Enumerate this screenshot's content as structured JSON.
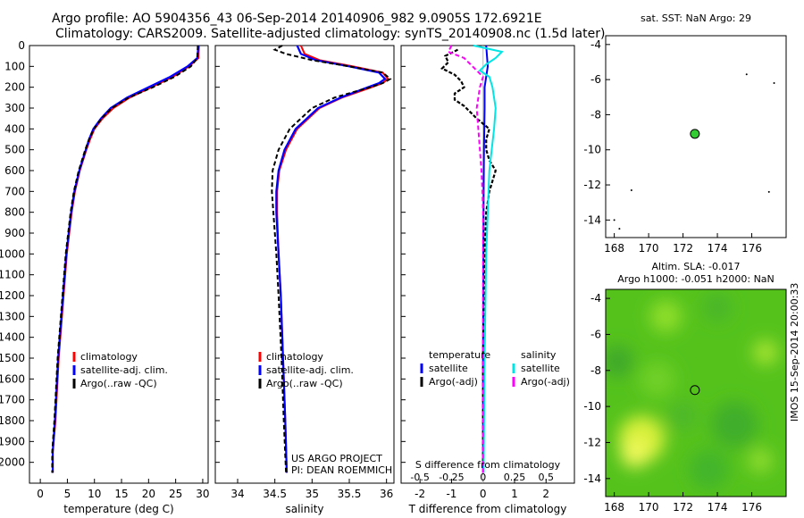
{
  "header": {
    "title_line1": "Argo profile: AO 5904356_43 06-Sep-2014 20140906_982 9.0905S 172.6921E",
    "title_line2": "Climatology: CARS2009. Satellite-adjusted climatology: synTS_20140908.nc (1.5d later)"
  },
  "colors": {
    "climatology": "#ff0000",
    "satellite": "#0000ff",
    "argo": "#000000",
    "sal_satellite": "#00e5e5",
    "sal_argo": "#ff00ff"
  },
  "chart_data": [
    {
      "id": "temperature",
      "type": "line",
      "xlabel": "temperature (deg C)",
      "ylabel": "",
      "xlim": [
        -2,
        31
      ],
      "ylim": [
        2100,
        0
      ],
      "xticks": [
        0,
        5,
        10,
        15,
        20,
        25,
        30
      ],
      "yticks": [
        0,
        100,
        200,
        300,
        400,
        500,
        600,
        700,
        800,
        900,
        1000,
        1100,
        1200,
        1300,
        1400,
        1500,
        1600,
        1700,
        1800,
        1900,
        2000
      ],
      "legend": [
        "climatology",
        "satellite-adj. clim.",
        "Argo(..raw -QC)"
      ],
      "series": [
        {
          "name": "climatology",
          "color": "#ff0000",
          "dash": "",
          "depth": [
            0,
            60,
            100,
            150,
            200,
            250,
            300,
            350,
            400,
            450,
            500,
            600,
            700,
            800,
            1000,
            1200,
            1500,
            1800,
            1950,
            2050
          ],
          "values": [
            29.3,
            29.2,
            27.5,
            24.5,
            20.5,
            16.5,
            13.5,
            11.5,
            10.0,
            9.2,
            8.5,
            7.3,
            6.4,
            5.8,
            4.9,
            4.3,
            3.4,
            2.8,
            2.3,
            2.3
          ]
        },
        {
          "name": "satellite",
          "color": "#0000ff",
          "dash": "",
          "depth": [
            0,
            60,
            100,
            150,
            200,
            250,
            300,
            350,
            400,
            450,
            500,
            600,
            700,
            800,
            1000,
            1200,
            1500,
            1800,
            1950,
            2050
          ],
          "values": [
            29.2,
            29.0,
            27.2,
            24.0,
            20.0,
            16.0,
            13.0,
            11.2,
            9.8,
            9.0,
            8.4,
            7.2,
            6.3,
            5.7,
            4.8,
            4.2,
            3.3,
            2.7,
            2.3,
            2.3
          ]
        },
        {
          "name": "argo",
          "color": "#000000",
          "dash": "5,3",
          "depth": [
            0,
            60,
            100,
            150,
            200,
            250,
            300,
            350,
            400,
            450,
            500,
            600,
            700,
            800,
            1000,
            1200,
            1500,
            1800,
            1950,
            2050
          ],
          "values": [
            29.1,
            29.0,
            27.8,
            24.8,
            20.8,
            16.3,
            13.2,
            11.3,
            9.9,
            9.0,
            8.3,
            7.1,
            6.2,
            5.6,
            4.7,
            4.1,
            3.2,
            2.6,
            2.2,
            2.2
          ]
        }
      ]
    },
    {
      "id": "salinity",
      "type": "line",
      "xlabel": "salinity",
      "ylabel": "",
      "xlim": [
        33.7,
        36.1
      ],
      "ylim": [
        2100,
        0
      ],
      "xticks": [
        34,
        34.5,
        35,
        35.5,
        36
      ],
      "legend": [
        "climatology",
        "satellite-adj. clim.",
        "Argo(..raw -QC)"
      ],
      "annotation_line1": "US ARGO PROJECT",
      "annotation_line2": "PI: DEAN ROEMMICH",
      "series": [
        {
          "name": "climatology",
          "color": "#ff0000",
          "dash": "",
          "depth": [
            0,
            40,
            70,
            100,
            130,
            160,
            180,
            200,
            250,
            300,
            400,
            500,
            600,
            700,
            800,
            1000,
            1200,
            1500,
            1800,
            2050
          ],
          "values": [
            34.85,
            34.9,
            35.1,
            35.55,
            35.95,
            36.02,
            35.95,
            35.8,
            35.4,
            35.1,
            34.8,
            34.65,
            34.56,
            34.53,
            34.53,
            34.55,
            34.58,
            34.61,
            34.64,
            34.66
          ]
        },
        {
          "name": "satellite",
          "color": "#0000ff",
          "dash": "",
          "depth": [
            0,
            40,
            70,
            100,
            130,
            160,
            180,
            200,
            250,
            300,
            400,
            500,
            600,
            700,
            800,
            1000,
            1200,
            1500,
            1800,
            2050
          ],
          "values": [
            34.8,
            34.85,
            35.05,
            35.5,
            35.9,
            35.98,
            35.9,
            35.75,
            35.38,
            35.08,
            34.78,
            34.63,
            34.55,
            34.52,
            34.52,
            34.55,
            34.58,
            34.61,
            34.64,
            34.66
          ]
        },
        {
          "name": "argo",
          "color": "#000000",
          "dash": "5,3",
          "depth": [
            0,
            20,
            40,
            70,
            100,
            130,
            160,
            180,
            200,
            250,
            300,
            400,
            500,
            600,
            700,
            800,
            1000,
            1200,
            1500,
            1800,
            2050
          ],
          "values": [
            34.6,
            34.5,
            34.65,
            35.0,
            35.5,
            35.95,
            36.05,
            35.95,
            35.78,
            35.3,
            35.0,
            34.7,
            34.55,
            34.47,
            34.46,
            34.48,
            34.52,
            34.55,
            34.59,
            34.62,
            34.65
          ]
        }
      ]
    },
    {
      "id": "differences",
      "type": "line",
      "xlabel": "T difference from climatology",
      "xlim": [
        -2.6,
        2.9
      ],
      "ylim": [
        2100,
        0
      ],
      "xticks": [
        -2,
        -1,
        0,
        1,
        2
      ],
      "top_axis_label": "S difference from climatology",
      "top_ticks": [
        "-0.5",
        "-0.25",
        "0",
        "0.25",
        "0.5"
      ],
      "top_tick_values": [
        -2,
        -1,
        0,
        1,
        2
      ],
      "legend_left_title": "temperature",
      "legend_right_title": "salinity",
      "legend_left": [
        "satellite",
        "Argo(-adj)"
      ],
      "legend_right": [
        "satellite",
        "Argo(-adj)"
      ],
      "series": [
        {
          "name": "T satellite",
          "color": "#0000ff",
          "dash": "",
          "depth": [
            0,
            100,
            200,
            300,
            500,
            700,
            1000,
            1500,
            2050
          ],
          "values": [
            0.1,
            0.15,
            0.05,
            0.05,
            0.03,
            0.02,
            0.01,
            0.0,
            0.0
          ]
        },
        {
          "name": "T argo",
          "color": "#000000",
          "dash": "4,2",
          "depth": [
            20,
            50,
            80,
            110,
            140,
            170,
            200,
            230,
            260,
            290,
            320,
            350,
            400,
            450,
            500,
            550,
            600,
            650,
            700,
            800,
            1000,
            1500,
            2000
          ],
          "values": [
            -0.8,
            -1.2,
            -1.1,
            -1.3,
            -0.9,
            -0.7,
            -0.6,
            -0.9,
            -0.9,
            -0.6,
            -0.4,
            -0.2,
            0.2,
            0.1,
            0.1,
            0.2,
            0.4,
            0.3,
            0.2,
            0.1,
            0.05,
            0.0,
            0.0
          ]
        },
        {
          "name": "S satellite",
          "color": "#00e5e5",
          "dash": "",
          "depth": [
            0,
            30,
            60,
            90,
            120,
            150,
            200,
            300,
            400,
            600,
            800,
            1000,
            1500,
            2050
          ],
          "values": [
            -0.3,
            0.6,
            0.4,
            0.1,
            -0.1,
            0.2,
            0.3,
            0.4,
            0.35,
            0.2,
            0.15,
            0.1,
            0.05,
            0.02
          ]
        },
        {
          "name": "S argo",
          "color": "#ff00ff",
          "dash": "5,3",
          "depth": [
            0,
            30,
            60,
            90,
            120,
            150,
            200,
            300,
            400,
            500,
            600,
            700,
            800,
            1000,
            1500,
            2050
          ],
          "values": [
            -1.0,
            -1.1,
            -0.6,
            -0.4,
            -0.2,
            0.0,
            -0.1,
            -0.2,
            -0.15,
            -0.1,
            -0.05,
            -0.02,
            0.0,
            0.0,
            0.0,
            0.0
          ]
        }
      ]
    },
    {
      "id": "sst_map",
      "type": "scatter",
      "title": "sat. SST: NaN Argo: 29",
      "xlim": [
        167.5,
        178
      ],
      "ylim": [
        -15,
        -3.5
      ],
      "xticks": [
        168,
        170,
        172,
        174,
        176
      ],
      "yticks": [
        -4,
        -6,
        -8,
        -10,
        -12,
        -14
      ],
      "points": [
        {
          "x": 172.69,
          "y": -9.09
        }
      ]
    },
    {
      "id": "sla_map",
      "type": "heatmap",
      "title_line1": "Altim. SLA: -0.017",
      "title_line2": "Argo h1000: -0.051 h2000: NaN",
      "xlim": [
        167.5,
        178
      ],
      "ylim": [
        -15,
        -3.5
      ],
      "xticks": [
        168,
        170,
        172,
        174,
        176
      ],
      "yticks": [
        -4,
        -6,
        -8,
        -10,
        -12,
        -14
      ],
      "points": [
        {
          "x": 172.69,
          "y": -9.09
        }
      ],
      "side_label": "IMOS 15-Sep-2014 20:00:33"
    }
  ]
}
